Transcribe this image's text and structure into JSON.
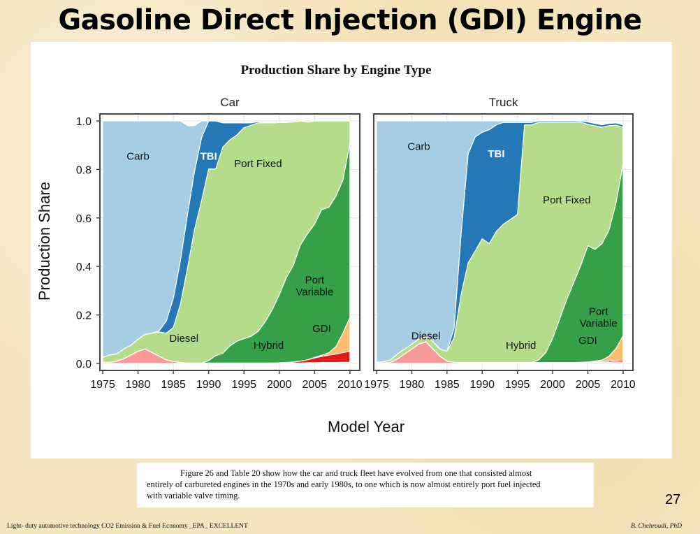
{
  "slide": {
    "title": "Gasoline Direct Injection (GDI) Engine",
    "page_number": "27",
    "footer_left": "Light- duty automotive technology CO2 Emission & Fuel Economy _EPA_ EXCELLENT",
    "footer_right": "B. Chehroudi, PhD"
  },
  "caption": {
    "lines": [
      "Figure 26 and Table 20 show how the car and truck fleet have evolved from one that consisted almost",
      "entirely of carbureted engines in the 1970s and early 1980s, to one which is now almost entirely port fuel injected",
      "with variable valve timing."
    ]
  },
  "colors": {
    "carb": "#a6cde3",
    "tbi": "#2378b5",
    "port_fixed": "#b4dc8b",
    "port_variable": "#35a048",
    "gdi": "#fcbe6e",
    "hybrid": "#e31a1c",
    "diesel": "#f8999a"
  },
  "chart_data": {
    "type": "area",
    "title": "Production Share by Engine Type",
    "xlabel": "Model Year",
    "ylabel": "Production Share",
    "xlim": [
      1975,
      2011
    ],
    "ylim": [
      0,
      1
    ],
    "x_ticks": [
      "1975",
      "1980",
      "1985",
      "1990",
      "1995",
      "2000",
      "2005",
      "2010"
    ],
    "y_ticks": [
      "0.0",
      "0.2",
      "0.4",
      "0.6",
      "0.8",
      "1.0"
    ],
    "grid": true,
    "legend": "none (direct labels)",
    "panels": [
      {
        "name": "Car",
        "x": [
          1975,
          1976,
          1977,
          1978,
          1979,
          1980,
          1981,
          1982,
          1983,
          1984,
          1985,
          1986,
          1987,
          1988,
          1989,
          1990,
          1991,
          1992,
          1993,
          1994,
          1995,
          1996,
          1997,
          1998,
          1999,
          2000,
          2001,
          2002,
          2003,
          2004,
          2005,
          2006,
          2007,
          2008,
          2009,
          2010
        ],
        "series": [
          {
            "name": "Diesel",
            "values": [
              0.005,
              0.005,
              0.01,
              0.02,
              0.035,
              0.05,
              0.06,
              0.045,
              0.03,
              0.015,
              0.008,
              0.004,
              0.002,
              0.002,
              0.002,
              0.002,
              0.002,
              0.002,
              0.002,
              0.002,
              0.002,
              0.002,
              0.002,
              0.002,
              0.002,
              0.002,
              0.002,
              0.002,
              0.002,
              0.003,
              0.003,
              0.004,
              0.004,
              0.004,
              0.005,
              0.005
            ]
          },
          {
            "name": "Hybrid",
            "values": [
              0,
              0,
              0,
              0,
              0,
              0,
              0,
              0,
              0,
              0,
              0,
              0,
              0,
              0,
              0,
              0,
              0,
              0,
              0,
              0,
              0,
              0,
              0,
              0,
              0,
              0.001,
              0.002,
              0.004,
              0.008,
              0.012,
              0.02,
              0.025,
              0.03,
              0.035,
              0.04,
              0.045
            ]
          },
          {
            "name": "GDI",
            "values": [
              0,
              0,
              0,
              0,
              0,
              0,
              0,
              0,
              0,
              0,
              0,
              0,
              0,
              0,
              0,
              0,
              0,
              0,
              0,
              0,
              0,
              0,
              0,
              0,
              0,
              0,
              0,
              0,
              0,
              0,
              0.002,
              0.005,
              0.01,
              0.03,
              0.08,
              0.14
            ]
          },
          {
            "name": "Port Variable",
            "values": [
              0,
              0,
              0,
              0,
              0,
              0,
              0,
              0,
              0,
              0,
              0,
              0,
              0,
              0,
              0,
              0.01,
              0.03,
              0.04,
              0.07,
              0.09,
              0.1,
              0.11,
              0.13,
              0.17,
              0.22,
              0.28,
              0.35,
              0.4,
              0.48,
              0.52,
              0.55,
              0.6,
              0.6,
              0.62,
              0.63,
              0.72
            ]
          },
          {
            "name": "Port Fixed",
            "values": [
              0.02,
              0.03,
              0.03,
              0.04,
              0.04,
              0.05,
              0.06,
              0.08,
              0.1,
              0.11,
              0.14,
              0.24,
              0.39,
              0.55,
              0.67,
              0.79,
              0.77,
              0.85,
              0.85,
              0.85,
              0.87,
              0.87,
              0.86,
              0.82,
              0.77,
              0.71,
              0.64,
              0.59,
              0.51,
              0.46,
              0.43,
              0.37,
              0.36,
              0.32,
              0.25,
              0.09
            ]
          },
          {
            "name": "TBI",
            "values": [
              0,
              0,
              0,
              0,
              0,
              0,
              0,
              0,
              0.005,
              0.05,
              0.12,
              0.18,
              0.22,
              0.24,
              0.26,
              0.22,
              0.2,
              0.1,
              0.07,
              0.05,
              0.02,
              0.01,
              0.005,
              0,
              0,
              0,
              0,
              0,
              0,
              0,
              0,
              0,
              0,
              0,
              0,
              0
            ]
          },
          {
            "name": "Carb",
            "values": [
              0.975,
              0.965,
              0.96,
              0.94,
              0.925,
              0.9,
              0.88,
              0.875,
              0.865,
              0.825,
              0.732,
              0.576,
              0.368,
              0.188,
              0.068,
              0.0,
              0.0,
              0.0,
              0.0,
              0.0,
              0.0,
              0.0,
              0.0,
              0.0,
              0.0,
              0.0,
              0.0,
              0.0,
              0.0,
              0.0,
              0.0,
              0.0,
              0.0,
              0.0,
              0.0,
              0.0
            ]
          }
        ],
        "labels": [
          {
            "text": "Carb",
            "x": 1980,
            "y": 0.84
          },
          {
            "text": "TBI",
            "x": 1990,
            "y": 0.84
          },
          {
            "text": "Port Fixed",
            "x": 1997,
            "y": 0.81
          },
          {
            "text": "Port Variable",
            "x": 2005,
            "y": 0.33
          },
          {
            "text": "Diesel",
            "x": 1986.5,
            "y": 0.09
          },
          {
            "text": "Hybrid",
            "x": 1998.5,
            "y": 0.06
          },
          {
            "text": "GDI",
            "x": 2006,
            "y": 0.13
          }
        ]
      },
      {
        "name": "Truck",
        "x": [
          1975,
          1976,
          1977,
          1978,
          1979,
          1980,
          1981,
          1982,
          1983,
          1984,
          1985,
          1986,
          1987,
          1988,
          1989,
          1990,
          1991,
          1992,
          1993,
          1994,
          1995,
          1996,
          1997,
          1998,
          1999,
          2000,
          2001,
          2002,
          2003,
          2004,
          2005,
          2006,
          2007,
          2008,
          2009,
          2010
        ],
        "series": [
          {
            "name": "Diesel",
            "values": [
              0.002,
              0.003,
              0.005,
              0.02,
              0.04,
              0.06,
              0.08,
              0.09,
              0.06,
              0.03,
              0.01,
              0.005,
              0.004,
              0.004,
              0.004,
              0.004,
              0.004,
              0.004,
              0.004,
              0.004,
              0.004,
              0.004,
              0.004,
              0.004,
              0.004,
              0.004,
              0.004,
              0.004,
              0.004,
              0.004,
              0.004,
              0.005,
              0.005,
              0.005,
              0.006,
              0.006
            ]
          },
          {
            "name": "Hybrid",
            "values": [
              0,
              0,
              0,
              0,
              0,
              0,
              0,
              0,
              0,
              0,
              0,
              0,
              0,
              0,
              0,
              0,
              0,
              0,
              0,
              0,
              0,
              0,
              0,
              0,
              0,
              0,
              0,
              0,
              0,
              0.001,
              0.002,
              0.003,
              0.004,
              0.005,
              0.006,
              0.008
            ]
          },
          {
            "name": "GDI",
            "values": [
              0,
              0,
              0,
              0,
              0,
              0,
              0,
              0,
              0,
              0,
              0,
              0,
              0,
              0,
              0,
              0,
              0,
              0,
              0,
              0,
              0,
              0,
              0,
              0,
              0,
              0,
              0,
              0,
              0,
              0,
              0,
              0.002,
              0.005,
              0.02,
              0.05,
              0.1
            ]
          },
          {
            "name": "Port Variable",
            "values": [
              0,
              0,
              0,
              0,
              0,
              0,
              0,
              0,
              0,
              0,
              0,
              0,
              0,
              0,
              0,
              0,
              0,
              0,
              0,
              0,
              0,
              0,
              0,
              0.01,
              0.04,
              0.1,
              0.18,
              0.26,
              0.33,
              0.4,
              0.48,
              0.46,
              0.48,
              0.52,
              0.6,
              0.71
            ]
          },
          {
            "name": "Port Fixed",
            "values": [
              0.003,
              0.005,
              0.01,
              0.02,
              0.02,
              0.02,
              0.02,
              0.02,
              0.03,
              0.03,
              0.04,
              0.1,
              0.28,
              0.41,
              0.46,
              0.51,
              0.49,
              0.54,
              0.57,
              0.59,
              0.61,
              0.98,
              0.98,
              0.98,
              0.95,
              0.89,
              0.81,
              0.73,
              0.66,
              0.59,
              0.5,
              0.51,
              0.48,
              0.43,
              0.32,
              0.15
            ]
          },
          {
            "name": "TBI",
            "values": [
              0,
              0,
              0,
              0,
              0,
              0,
              0,
              0,
              0,
              0,
              0,
              0.04,
              0.25,
              0.45,
              0.47,
              0.44,
              0.47,
              0.44,
              0.42,
              0.4,
              0.38,
              0.01,
              0.01,
              0.01,
              0.01,
              0.01,
              0.01,
              0.01,
              0.01,
              0.01,
              0.01,
              0.01,
              0.01,
              0.01,
              0.01,
              0.01
            ]
          },
          {
            "name": "Carb",
            "values": [
              0.995,
              0.992,
              0.985,
              0.96,
              0.94,
              0.92,
              0.9,
              0.89,
              0.91,
              0.94,
              0.95,
              0.855,
              0.466,
              0.136,
              0.066,
              0.046,
              0.036,
              0.016,
              0.006,
              0.006,
              0.006,
              0.006,
              0.006,
              0.0,
              0.0,
              0.0,
              0.0,
              0.0,
              0.0,
              0.0,
              0.0,
              0.0,
              0.0,
              0.0,
              0.0,
              0.0
            ]
          }
        ],
        "labels": [
          {
            "text": "Carb",
            "x": 1981,
            "y": 0.88
          },
          {
            "text": "TBI",
            "x": 1992,
            "y": 0.85
          },
          {
            "text": "Port Fixed",
            "x": 2002,
            "y": 0.66
          },
          {
            "text": "Port Variable",
            "x": 2006.5,
            "y": 0.2
          },
          {
            "text": "Diesel",
            "x": 1982,
            "y": 0.1
          },
          {
            "text": "Hybrid",
            "x": 1995.5,
            "y": 0.06
          },
          {
            "text": "GDI",
            "x": 2005,
            "y": 0.08
          }
        ]
      }
    ]
  }
}
